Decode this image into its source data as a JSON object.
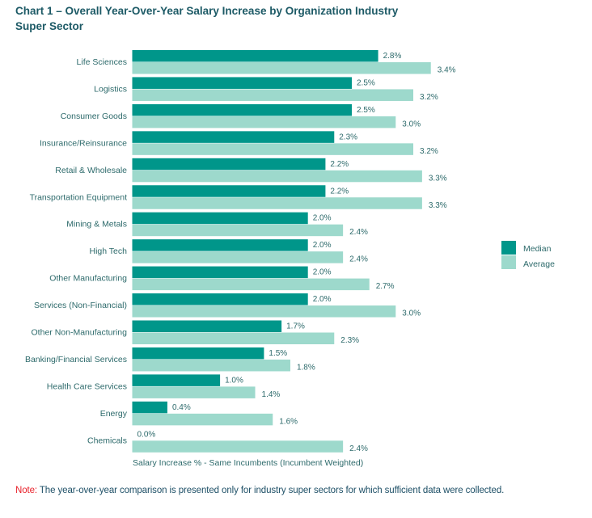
{
  "chart_data": {
    "type": "bar",
    "orientation": "horizontal",
    "title": "Chart 1 – Overall Year-Over-Year Salary Increase by Organization Industry Super Sector",
    "xlabel": "Salary Increase % - Same Incumbents (Incumbent Weighted)",
    "ylabel": "",
    "grid": false,
    "legend_position": "right",
    "categories": [
      "Life Sciences",
      "Logistics",
      "Consumer Goods",
      "Insurance/Reinsurance",
      "Retail & Wholesale",
      "Transportation Equipment",
      "Mining & Metals",
      "High Tech",
      "Other Manufacturing",
      "Services (Non-Financial)",
      "Other Non-Manufacturing",
      "Banking/Financial Services",
      "Health Care Services",
      "Energy",
      "Chemicals"
    ],
    "series": [
      {
        "name": "Median",
        "color": "#00968a",
        "values": [
          2.8,
          2.5,
          2.5,
          2.3,
          2.2,
          2.2,
          2.0,
          2.0,
          2.0,
          2.0,
          1.7,
          1.5,
          1.0,
          0.4,
          0.0
        ],
        "labels": [
          "2.8%",
          "2.5%",
          "2.5%",
          "2.3%",
          "2.2%",
          "2.2%",
          "2.0%",
          "2.0%",
          "2.0%",
          "2.0%",
          "1.7%",
          "1.5%",
          "1.0%",
          "0.4%",
          "0.0%"
        ]
      },
      {
        "name": "Average",
        "color": "#9dd9cc",
        "values": [
          3.4,
          3.2,
          3.0,
          3.2,
          3.3,
          3.3,
          2.4,
          2.4,
          2.7,
          3.0,
          2.3,
          1.8,
          1.4,
          1.6,
          2.4
        ],
        "labels": [
          "3.4%",
          "3.2%",
          "3.0%",
          "3.2%",
          "3.3%",
          "3.3%",
          "2.4%",
          "2.4%",
          "2.7%",
          "3.0%",
          "2.3%",
          "1.8%",
          "1.4%",
          "1.6%",
          "2.4%"
        ]
      }
    ],
    "xlim": [
      0,
      3.5
    ]
  },
  "title_line1": "Chart 1 – Overall Year-Over-Year Salary Increase by Organization Industry",
  "title_line2": "Super Sector",
  "note": {
    "prefix": "Note:",
    "text": " The year-over-year comparison is presented only for industry super sectors for which sufficient data were collected."
  }
}
